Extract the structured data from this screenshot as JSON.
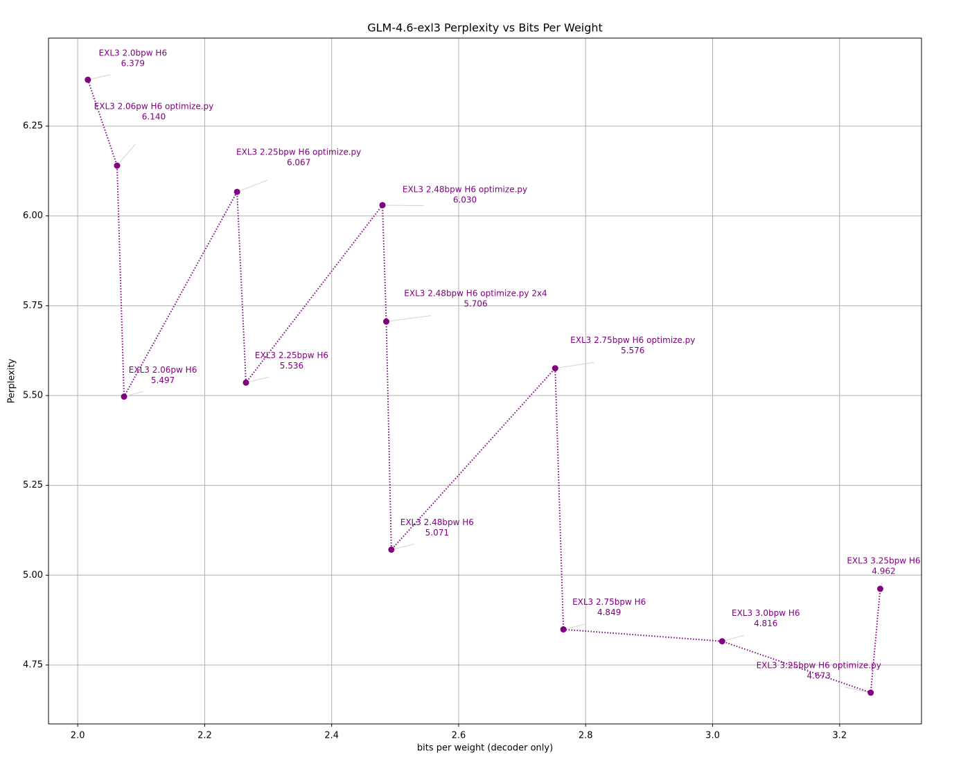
{
  "chart_data": {
    "type": "line",
    "title": "GLM-4.6-exl3 Perplexity vs Bits Per Weight",
    "x_label": "bits per weight (decoder only)",
    "y_label": "Perplexity",
    "x": [
      2.016,
      2.062,
      2.073,
      2.251,
      2.265,
      2.48,
      2.486,
      2.494,
      2.752,
      2.765,
      3.015,
      3.249,
      3.264
    ],
    "series": [
      {
        "color": "#800080",
        "values": [
          6.379,
          6.14,
          5.497,
          6.067,
          5.536,
          6.03,
          5.706,
          5.071,
          5.576,
          4.849,
          4.816,
          4.673,
          4.962
        ],
        "value_labels": [
          "6.379",
          "6.140",
          "5.497",
          "6.067",
          "5.536",
          "6.030",
          "5.706",
          "5.071",
          "5.576",
          "4.849",
          "4.816",
          "4.673",
          "4.962"
        ],
        "point_labels": [
          "EXL3 2.0bpw H6",
          "EXL3 2.06pw H6 optimize.py",
          "EXL3 2.06pw H6",
          "EXL3 2.25bpw H6 optimize.py",
          "EXL3 2.25bpw H6",
          "EXL3 2.48bpw H6 optimize.py",
          "EXL3 2.48bpw H6 optimize.py 2x4",
          "EXL3 2.48bpw H6",
          "EXL3 2.75bpw H6 optimize.py",
          "EXL3 2.75bpw H6",
          "EXL3 3.0bpw H6",
          "EXL3 3.25bpw H6 optimize.py",
          "EXL3 3.25bpw H6"
        ]
      }
    ],
    "xlim": [
      1.954,
      3.329
    ],
    "ylim": [
      4.586,
      6.495
    ],
    "xticks": [
      {
        "value": 2,
        "label": "2.0"
      },
      2.2,
      2.4,
      2.6,
      2.8,
      {
        "value": 3,
        "label": "3.0"
      },
      3.2
    ],
    "yticks": [
      4.75,
      {
        "value": 5,
        "label": "5.00"
      },
      5.25,
      {
        "value": 5.5,
        "label": "5.50"
      },
      5.75,
      {
        "value": 6,
        "label": "6.00"
      },
      6.25
    ],
    "grid": true
  }
}
